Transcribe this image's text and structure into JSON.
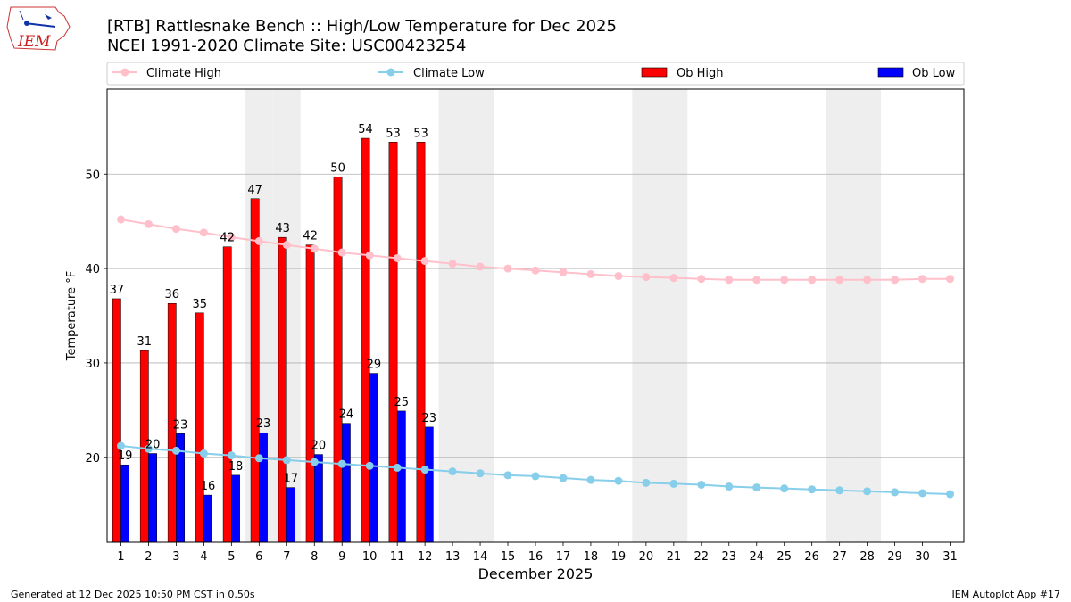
{
  "title_line1": "[RTB] Rattlesnake Bench  :: High/Low Temperature for Dec 2025",
  "title_line2": "NCEI 1991-2020 Climate Site: USC00423254",
  "logo_text": "IEM",
  "footer_left": "Generated at 12 Dec 2025 10:50 PM CST in 0.50s",
  "footer_right": "IEM Autoplot App #17",
  "colors": {
    "ob_high": "#ff0000",
    "ob_low": "#0000ff",
    "climate_high": "#ffc0cb",
    "climate_low": "#87ceeb",
    "weekend": "#eeeeee",
    "grid": "#b0b0b0"
  },
  "legend": [
    {
      "label": "Climate High",
      "kind": "line",
      "color": "#ffc0cb"
    },
    {
      "label": "Climate Low",
      "kind": "line",
      "color": "#87ceeb"
    },
    {
      "label": "Ob High",
      "kind": "bar",
      "color": "#ff0000"
    },
    {
      "label": "Ob Low",
      "kind": "bar",
      "color": "#0000ff"
    }
  ],
  "chart_data": {
    "type": "bar",
    "xlabel": "December 2025",
    "ylabel": "Temperature °F",
    "xlim": [
      0.5,
      31.5
    ],
    "ylim": [
      11,
      59
    ],
    "yticks": [
      20,
      30,
      40,
      50
    ],
    "grid": "horizontal",
    "days": [
      1,
      2,
      3,
      4,
      5,
      6,
      7,
      8,
      9,
      10,
      11,
      12,
      13,
      14,
      15,
      16,
      17,
      18,
      19,
      20,
      21,
      22,
      23,
      24,
      25,
      26,
      27,
      28,
      29,
      30,
      31
    ],
    "weekend_days": [
      6,
      7,
      13,
      14,
      20,
      21,
      27,
      28
    ],
    "series": [
      {
        "name": "Ob High",
        "type": "bar",
        "days": [
          1,
          2,
          3,
          4,
          5,
          6,
          7,
          8,
          9,
          10,
          11,
          12
        ],
        "values": [
          36.8,
          31.3,
          36.3,
          35.3,
          42.3,
          47.4,
          43.3,
          42.5,
          49.7,
          53.8,
          53.4,
          53.4
        ],
        "labels": [
          "37",
          "31",
          "36",
          "35",
          "42",
          "47",
          "43",
          "42",
          "50",
          "54",
          "53",
          "53"
        ]
      },
      {
        "name": "Ob Low",
        "type": "bar",
        "days": [
          1,
          2,
          3,
          4,
          5,
          6,
          7,
          8,
          9,
          10,
          11,
          12
        ],
        "values": [
          19.2,
          20.4,
          22.5,
          16.0,
          18.1,
          22.6,
          16.8,
          20.3,
          23.6,
          28.9,
          24.9,
          23.2
        ],
        "labels": [
          "19",
          "20",
          "23",
          "16",
          "18",
          "23",
          "17",
          "20",
          "24",
          "29",
          "25",
          "23"
        ]
      },
      {
        "name": "Climate High",
        "type": "line",
        "values": [
          45.2,
          44.7,
          44.2,
          43.8,
          43.3,
          42.9,
          42.5,
          42.1,
          41.7,
          41.4,
          41.1,
          40.8,
          40.5,
          40.2,
          40.0,
          39.8,
          39.6,
          39.4,
          39.2,
          39.1,
          39.0,
          38.9,
          38.8,
          38.8,
          38.8,
          38.8,
          38.8,
          38.8,
          38.8,
          38.9,
          38.9
        ]
      },
      {
        "name": "Climate Low",
        "type": "line",
        "values": [
          21.2,
          20.9,
          20.7,
          20.4,
          20.2,
          19.9,
          19.7,
          19.5,
          19.3,
          19.1,
          18.9,
          18.7,
          18.5,
          18.3,
          18.1,
          18.0,
          17.8,
          17.6,
          17.5,
          17.3,
          17.2,
          17.1,
          16.9,
          16.8,
          16.7,
          16.6,
          16.5,
          16.4,
          16.3,
          16.2,
          16.1
        ]
      }
    ]
  }
}
